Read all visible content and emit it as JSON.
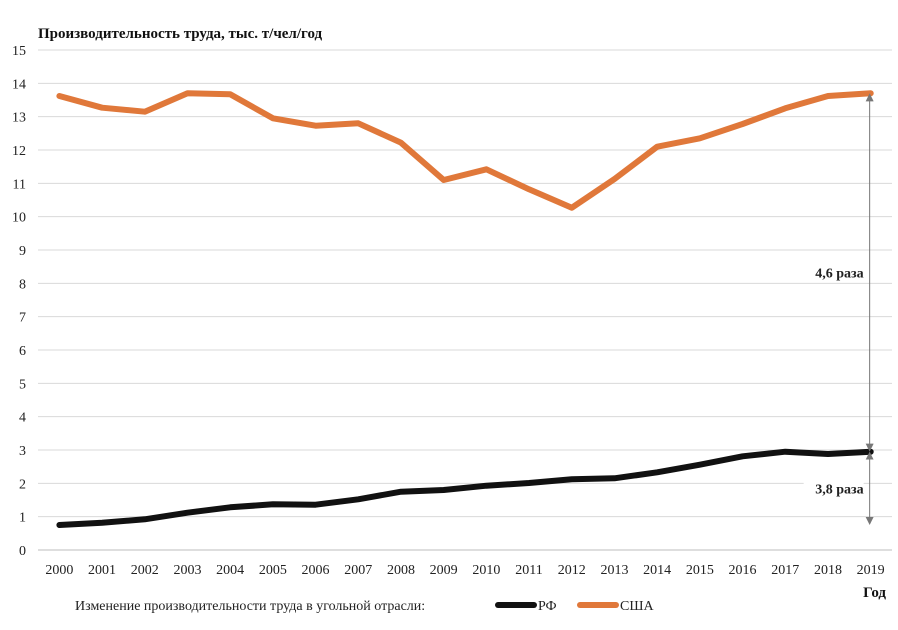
{
  "chart_data": {
    "type": "line",
    "ylabel": "Производительность труда, тыс. т/чел/год",
    "xlabel": "Год",
    "ylim": [
      0,
      15
    ],
    "y_ticks": [
      0,
      1,
      2,
      3,
      4,
      5,
      6,
      7,
      8,
      9,
      10,
      11,
      12,
      13,
      14,
      15
    ],
    "x": [
      "2000",
      "2001",
      "2002",
      "2003",
      "2004",
      "2005",
      "2006",
      "2007",
      "2008",
      "2009",
      "2010",
      "2011",
      "2012",
      "2013",
      "2014",
      "2015",
      "2016",
      "2017",
      "2018",
      "2019"
    ],
    "grid": "horizontal",
    "series": [
      {
        "name": "РФ",
        "color": "#111111",
        "values": [
          0.75,
          0.82,
          0.92,
          1.12,
          1.28,
          1.37,
          1.36,
          1.52,
          1.75,
          1.8,
          1.93,
          2.01,
          2.12,
          2.15,
          2.33,
          2.56,
          2.81,
          2.95,
          2.88,
          2.95
        ]
      },
      {
        "name": "США",
        "color": "#E0783A",
        "values": [
          13.62,
          13.27,
          13.15,
          13.7,
          13.67,
          12.95,
          12.73,
          12.8,
          12.22,
          11.1,
          11.42,
          10.82,
          10.27,
          11.13,
          12.1,
          12.35,
          12.78,
          13.25,
          13.62,
          13.7
        ]
      }
    ],
    "annotations": [
      {
        "text": "4,6 раза",
        "from_value": 13.7,
        "to_value": 2.95,
        "at": "2019"
      },
      {
        "text": "3,8 раза",
        "from_value": 2.95,
        "to_value": 0.75,
        "at": "2019"
      }
    ],
    "legend": {
      "title": "Изменение производительности труда в угольной отрасли:",
      "position": "bottom"
    }
  }
}
